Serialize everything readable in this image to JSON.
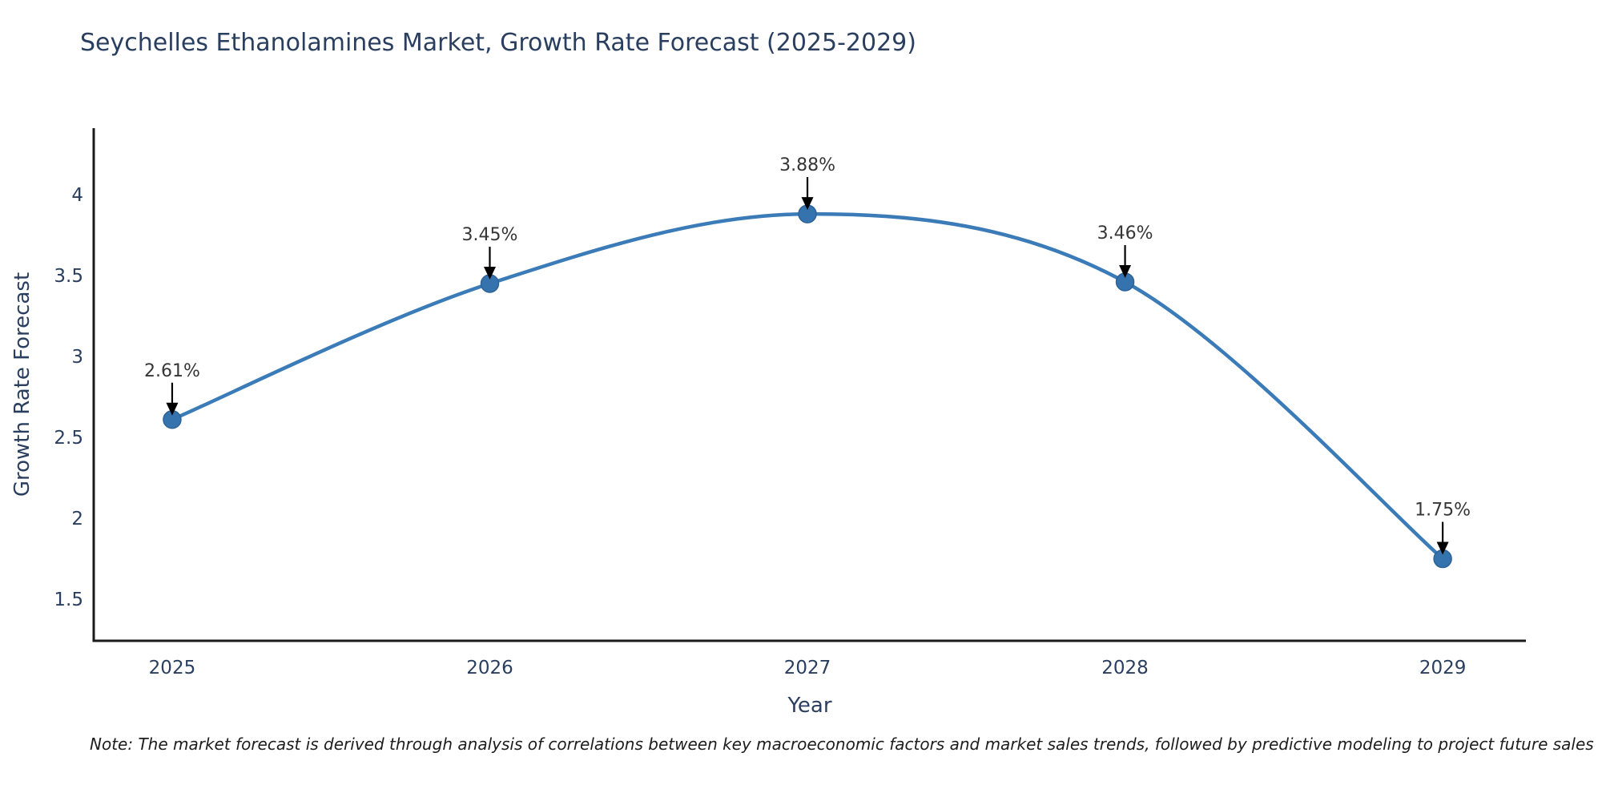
{
  "title": "Seychelles Ethanolamines Market, Growth Rate Forecast (2025-2029)",
  "note": "Note: The market forecast is derived through analysis of correlations between key macroeconomic factors and market sales trends, followed by predictive modeling to project future sales",
  "chart_data": {
    "type": "line",
    "title": "Seychelles Ethanolamines Market, Growth Rate Forecast (2025-2029)",
    "x": [
      2025,
      2026,
      2027,
      2028,
      2029
    ],
    "xtick_labels": [
      "2025",
      "2026",
      "2027",
      "2028",
      "2029"
    ],
    "series": [
      {
        "name": "Growth Rate Forecast",
        "values": [
          2.61,
          3.45,
          3.88,
          3.46,
          1.75
        ]
      }
    ],
    "point_labels": [
      "2.61%",
      "3.45%",
      "3.88%",
      "3.46%",
      "1.75%"
    ],
    "xlabel": "Year",
    "ylabel": "Growth Rate Forecast",
    "yticks": [
      1.5,
      2,
      2.5,
      3,
      3.5,
      4
    ],
    "ylim": [
      1.243,
      4.41
    ],
    "xlim": [
      2024.753,
      2029.262
    ],
    "grid": false,
    "legend_position": "none",
    "line_shape": "spline",
    "colors": {
      "line": "#3a7bb8",
      "marker": "#3573ae",
      "marker_edge": "#2d6397",
      "axis": "#1a1a1a",
      "tick_text": "#2a3f5f",
      "title_text": "#2a3f5f",
      "annotation_text": "#363636",
      "annotation_arrow": "#000000",
      "background": "#ffffff"
    }
  }
}
